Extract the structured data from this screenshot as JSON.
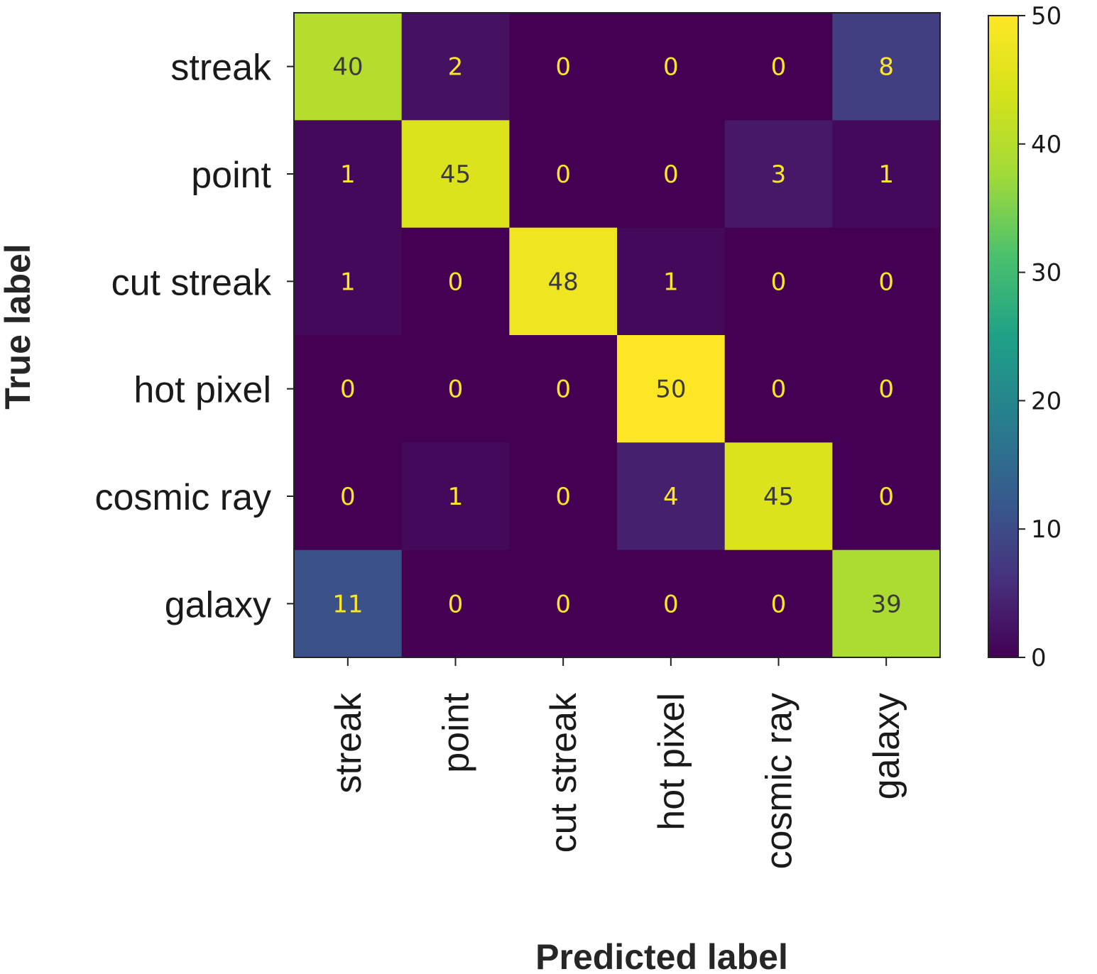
{
  "chart_data": {
    "type": "heatmap",
    "title": "",
    "xlabel": "Predicted label",
    "ylabel": "True label",
    "x_categories": [
      "streak",
      "point",
      "cut streak",
      "hot pixel",
      "cosmic ray",
      "galaxy"
    ],
    "y_categories": [
      "streak",
      "point",
      "cut streak",
      "hot pixel",
      "cosmic ray",
      "galaxy"
    ],
    "values": [
      [
        40,
        2,
        0,
        0,
        0,
        8
      ],
      [
        1,
        45,
        0,
        0,
        3,
        1
      ],
      [
        1,
        0,
        48,
        1,
        0,
        0
      ],
      [
        0,
        0,
        0,
        50,
        0,
        0
      ],
      [
        0,
        1,
        0,
        4,
        45,
        0
      ],
      [
        11,
        0,
        0,
        0,
        0,
        39
      ]
    ],
    "colormap": "viridis",
    "colorbar": {
      "range": [
        0,
        50
      ],
      "ticks": [
        0,
        10,
        20,
        30,
        40,
        50
      ],
      "tick_labels": [
        "0",
        "10",
        "20",
        "30",
        "40",
        "50"
      ]
    },
    "grid": false,
    "legend": "colorbar-right"
  }
}
